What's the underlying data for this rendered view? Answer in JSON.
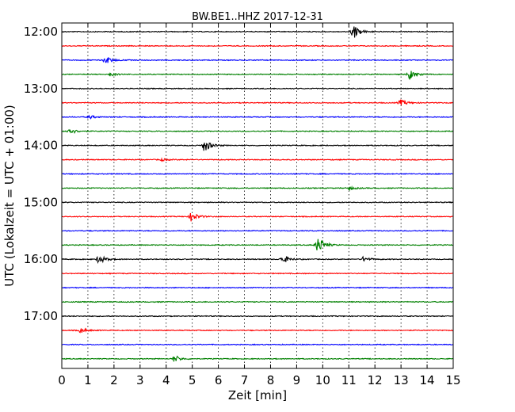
{
  "chart_data": {
    "type": "line",
    "title": "BW.BE1..HHZ 2017-12-31",
    "xlabel": "Zeit  [min]",
    "ylabel": "UTC (Lokalzeit = UTC + 01:00)",
    "xlim": [
      0,
      15
    ],
    "x_ticks": [
      "0",
      "1",
      "2",
      "3",
      "4",
      "5",
      "6",
      "7",
      "8",
      "9",
      "10",
      "11",
      "12",
      "13",
      "14",
      "15"
    ],
    "y_ticks": [
      "12:00",
      "13:00",
      "14:00",
      "15:00",
      "16:00",
      "17:00"
    ],
    "grid": "vertical-dotted",
    "series_colors": [
      "#000000",
      "#ff0000",
      "#0000ff",
      "#008000"
    ],
    "traces": [
      {
        "start": "12:00",
        "color": "#000000",
        "events": [
          {
            "t": 11.15,
            "amp": 1.0
          }
        ]
      },
      {
        "start": "12:15",
        "color": "#ff0000",
        "events": []
      },
      {
        "start": "12:30",
        "color": "#0000ff",
        "events": [
          {
            "t": 1.65,
            "amp": 0.55
          }
        ]
      },
      {
        "start": "12:45",
        "color": "#008000",
        "events": [
          {
            "t": 1.85,
            "amp": 0.2
          },
          {
            "t": 13.3,
            "amp": 0.6
          }
        ]
      },
      {
        "start": "13:00",
        "color": "#000000",
        "events": []
      },
      {
        "start": "13:15",
        "color": "#ff0000",
        "events": [
          {
            "t": 12.95,
            "amp": 0.4
          }
        ]
      },
      {
        "start": "13:30",
        "color": "#0000ff",
        "events": [
          {
            "t": 1.05,
            "amp": 0.2
          }
        ]
      },
      {
        "start": "13:45",
        "color": "#008000",
        "events": [
          {
            "t": 0.25,
            "amp": 0.45
          }
        ]
      },
      {
        "start": "14:00",
        "color": "#000000",
        "events": [
          {
            "t": 5.45,
            "amp": 0.85
          }
        ]
      },
      {
        "start": "14:15",
        "color": "#ff0000",
        "events": [
          {
            "t": 3.8,
            "amp": 0.15
          }
        ]
      },
      {
        "start": "14:30",
        "color": "#0000ff",
        "events": []
      },
      {
        "start": "14:45",
        "color": "#008000",
        "events": [
          {
            "t": 11.0,
            "amp": 0.2
          }
        ]
      },
      {
        "start": "15:00",
        "color": "#000000",
        "events": []
      },
      {
        "start": "15:15",
        "color": "#ff0000",
        "events": [
          {
            "t": 4.95,
            "amp": 0.6
          }
        ]
      },
      {
        "start": "15:30",
        "color": "#0000ff",
        "events": []
      },
      {
        "start": "15:45",
        "color": "#008000",
        "events": [
          {
            "t": 9.8,
            "amp": 1.15
          }
        ]
      },
      {
        "start": "16:00",
        "color": "#000000",
        "events": [
          {
            "t": 1.4,
            "amp": 0.6
          },
          {
            "t": 8.45,
            "amp": 0.55
          },
          {
            "t": 11.55,
            "amp": 0.3
          }
        ]
      },
      {
        "start": "16:15",
        "color": "#ff0000",
        "events": []
      },
      {
        "start": "16:30",
        "color": "#0000ff",
        "events": []
      },
      {
        "start": "16:45",
        "color": "#008000",
        "events": []
      },
      {
        "start": "17:00",
        "color": "#000000",
        "events": []
      },
      {
        "start": "17:15",
        "color": "#ff0000",
        "events": [
          {
            "t": 0.7,
            "amp": 0.3
          }
        ]
      },
      {
        "start": "17:30",
        "color": "#0000ff",
        "events": []
      },
      {
        "start": "17:45",
        "color": "#008000",
        "events": [
          {
            "t": 4.3,
            "amp": 0.45
          }
        ]
      }
    ]
  }
}
